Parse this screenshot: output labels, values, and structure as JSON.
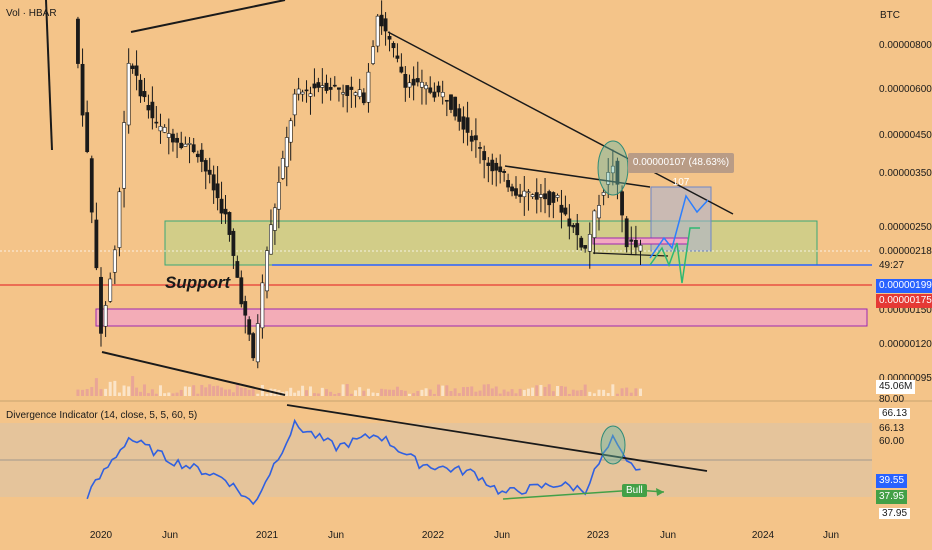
{
  "header": {
    "volume_label": "Vol · HBAR",
    "currency": "BTC"
  },
  "price_axis": {
    "ticks": [
      "0.00000800",
      "0.00000600",
      "0.00000450",
      "0.00000350",
      "0.00000250",
      "0.00000150",
      "0.00000120",
      "0.00000095"
    ]
  },
  "badges": {
    "current_price": "0.00000218",
    "countdown": "49:27",
    "blue_level": "0.00000199",
    "red_level": "0.00000175",
    "volume": "45.06M"
  },
  "indicator": {
    "label": "Divergence Indicator (14, close, 5, 5, 60, 5)",
    "ticks": [
      "80.00",
      "66.13",
      "66.13",
      "60.00",
      "39.55",
      "37.95",
      "37.95"
    ]
  },
  "x_axis": {
    "ticks": [
      "2020",
      "Jun",
      "2021",
      "Jun",
      "2022",
      "Jun",
      "2023",
      "Jun",
      "2024",
      "Jun"
    ]
  },
  "annotations": {
    "support_text": "Support",
    "measure_text": "0.00000107 (48.63%) 107",
    "bull_text": "Bull"
  },
  "colors": {
    "background": "#f4c489",
    "up_candle": "#ffffff",
    "down_candle": "#1a1a1a",
    "indicator_line": "#3060e0",
    "support_zone": "#c9d088",
    "blue_line": "#2962ff",
    "red_line": "#e53935",
    "pink_zone": "#f2a8c0",
    "bull_green": "#43a047"
  },
  "chart_data": {
    "type": "candlestick",
    "x_axis_months": [
      "2019-11",
      "2023-12"
    ],
    "price_series_btc_approx": [
      {
        "date": "2019-11",
        "close": 9.5e-06
      },
      {
        "date": "2019-12",
        "close": 4e-06
      },
      {
        "date": "2020-01",
        "close": 1.3e-06
      },
      {
        "date": "2020-02",
        "close": 2.2e-06
      },
      {
        "date": "2020-03",
        "close": 7.2e-06
      },
      {
        "date": "2020-05",
        "close": 4.8e-06
      },
      {
        "date": "2020-08",
        "close": 4.1e-06
      },
      {
        "date": "2020-10",
        "close": 2.7e-06
      },
      {
        "date": "2020-12",
        "close": 1.1e-06
      },
      {
        "date": "2021-01",
        "close": 2.2e-06
      },
      {
        "date": "2021-03",
        "close": 5.8e-06
      },
      {
        "date": "2021-05",
        "close": 6.3e-06
      },
      {
        "date": "2021-08",
        "close": 5.8e-06
      },
      {
        "date": "2021-09",
        "close": 9.8e-06
      },
      {
        "date": "2021-11",
        "close": 6.4e-06
      },
      {
        "date": "2022-02",
        "close": 5.8e-06
      },
      {
        "date": "2022-05",
        "close": 3.8e-06
      },
      {
        "date": "2022-07",
        "close": 3.2e-06
      },
      {
        "date": "2022-10",
        "close": 3e-06
      },
      {
        "date": "2022-12",
        "close": 2.2e-06
      },
      {
        "date": "2023-01",
        "close": 3e-06
      },
      {
        "date": "2023-02",
        "close": 3.8e-06
      },
      {
        "date": "2023-03",
        "close": 2.3e-06
      },
      {
        "date": "2023-04",
        "close": 2.2e-06
      }
    ],
    "indicator_series_approx": [
      {
        "date": "2019-12",
        "value": 41
      },
      {
        "date": "2020-03",
        "value": 72
      },
      {
        "date": "2020-06",
        "value": 60
      },
      {
        "date": "2020-10",
        "value": 50
      },
      {
        "date": "2020-12",
        "value": 36
      },
      {
        "date": "2021-03",
        "value": 79
      },
      {
        "date": "2021-06",
        "value": 67
      },
      {
        "date": "2021-09",
        "value": 74
      },
      {
        "date": "2021-12",
        "value": 58
      },
      {
        "date": "2022-04",
        "value": 53
      },
      {
        "date": "2022-06",
        "value": 42
      },
      {
        "date": "2022-10",
        "value": 47
      },
      {
        "date": "2022-12",
        "value": 44
      },
      {
        "date": "2023-01",
        "value": 58
      },
      {
        "date": "2023-02",
        "value": 71
      },
      {
        "date": "2023-03",
        "value": 58
      },
      {
        "date": "2023-04",
        "value": 55
      }
    ],
    "levels": {
      "blue_line": 1.99e-06,
      "red_line": 1.75e-06
    },
    "indicator_levels": [
      80,
      60,
      40
    ],
    "grid": false
  }
}
